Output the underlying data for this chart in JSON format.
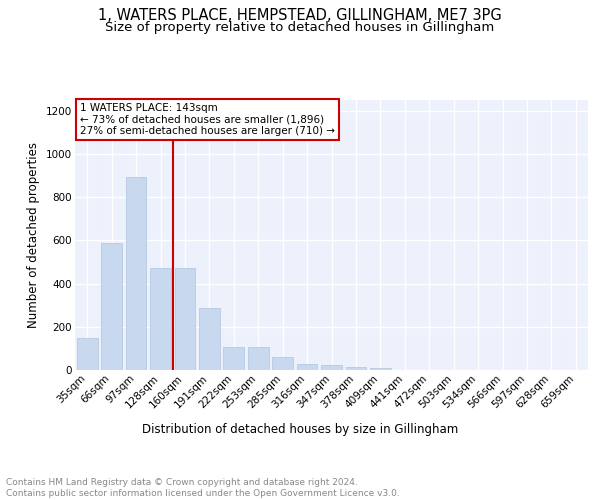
{
  "title_line1": "1, WATERS PLACE, HEMPSTEAD, GILLINGHAM, ME7 3PG",
  "title_line2": "Size of property relative to detached houses in Gillingham",
  "xlabel": "Distribution of detached houses by size in Gillingham",
  "ylabel": "Number of detached properties",
  "bar_labels": [
    "35sqm",
    "66sqm",
    "97sqm",
    "128sqm",
    "160sqm",
    "191sqm",
    "222sqm",
    "253sqm",
    "285sqm",
    "316sqm",
    "347sqm",
    "378sqm",
    "409sqm",
    "441sqm",
    "472sqm",
    "503sqm",
    "534sqm",
    "566sqm",
    "597sqm",
    "628sqm",
    "659sqm"
  ],
  "bar_values": [
    150,
    590,
    895,
    470,
    470,
    285,
    105,
    105,
    60,
    30,
    25,
    15,
    10,
    0,
    0,
    0,
    0,
    0,
    0,
    0,
    0
  ],
  "bar_color": "#c8d8ef",
  "bar_edge_color": "#afc4e0",
  "vline_x": 3.5,
  "vline_color": "#cc0000",
  "annotation_text": "1 WATERS PLACE: 143sqm\n← 73% of detached houses are smaller (1,896)\n27% of semi-detached houses are larger (710) →",
  "annotation_box_color": "#cc0000",
  "ylim": [
    0,
    1250
  ],
  "yticks": [
    0,
    200,
    400,
    600,
    800,
    1000,
    1200
  ],
  "footer_text": "Contains HM Land Registry data © Crown copyright and database right 2024.\nContains public sector information licensed under the Open Government Licence v3.0.",
  "bg_color": "#edf1fb",
  "grid_color": "#ffffff",
  "title_fontsize": 10.5,
  "subtitle_fontsize": 9.5,
  "axis_label_fontsize": 8.5,
  "tick_fontsize": 7.5,
  "annotation_fontsize": 7.5,
  "footer_fontsize": 6.5
}
